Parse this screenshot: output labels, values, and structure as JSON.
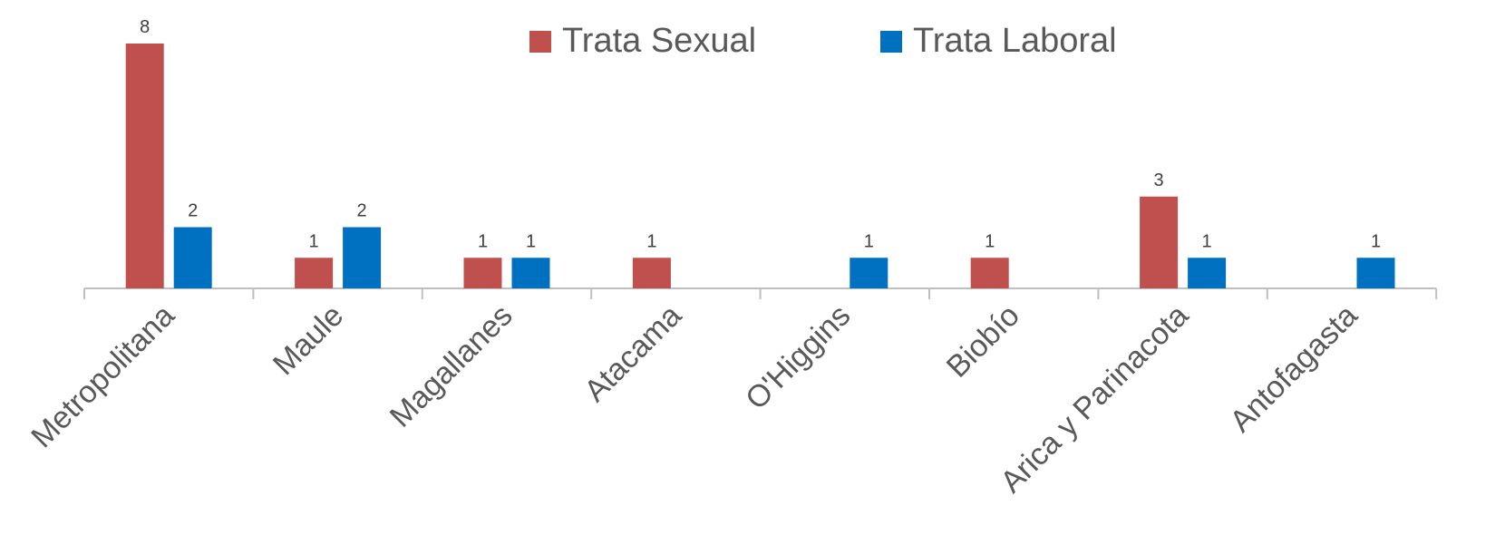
{
  "chart_data": {
    "type": "bar",
    "categories": [
      "Metropolitana",
      "Maule",
      "Magallanes",
      "Atacama",
      "O'Higgins",
      "Biobío",
      "Arica y Parinacota",
      "Antofagasta"
    ],
    "series": [
      {
        "name": "Trata Sexual",
        "color": "#c0504d",
        "values": [
          8,
          1,
          1,
          1,
          null,
          1,
          3,
          null
        ]
      },
      {
        "name": "Trata Laboral",
        "color": "#0070c0",
        "values": [
          2,
          2,
          1,
          null,
          1,
          null,
          1,
          1
        ]
      }
    ],
    "ylim": [
      0,
      8
    ],
    "legend": "top"
  }
}
